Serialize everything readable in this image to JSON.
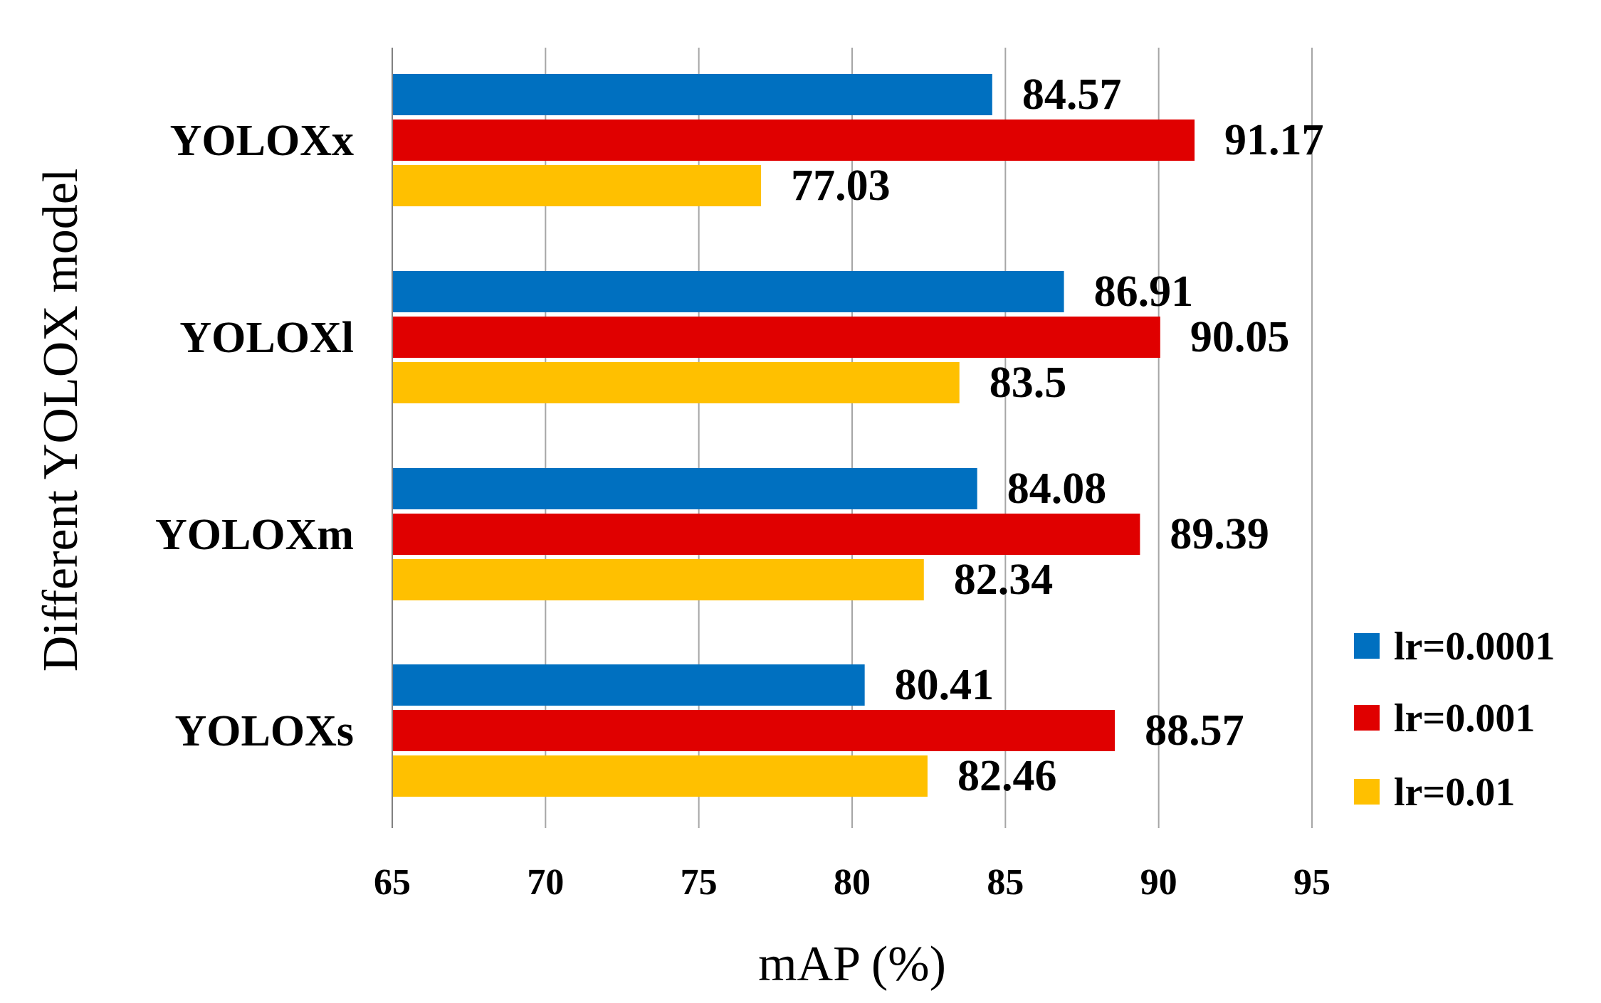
{
  "chart_data": {
    "type": "bar",
    "orientation": "horizontal",
    "title": "",
    "xlabel": "mAP (%)",
    "ylabel": "Different YOLOX model",
    "xlim": [
      65,
      95
    ],
    "xticks": [
      65,
      70,
      75,
      80,
      85,
      90,
      95
    ],
    "grid": "vertical",
    "legend_position": "bottom-right",
    "categories": [
      "YOLOXx",
      "YOLOXl",
      "YOLOXm",
      "YOLOXs"
    ],
    "series": [
      {
        "name": "lr=0.0001",
        "color": "#0070C0",
        "values": [
          84.57,
          86.91,
          84.08,
          80.41
        ]
      },
      {
        "name": "lr=0.001",
        "color": "#E00000",
        "values": [
          91.17,
          90.05,
          89.39,
          88.57
        ]
      },
      {
        "name": "lr=0.01",
        "color": "#FFC000",
        "values": [
          77.03,
          83.5,
          82.34,
          82.46
        ]
      }
    ]
  }
}
